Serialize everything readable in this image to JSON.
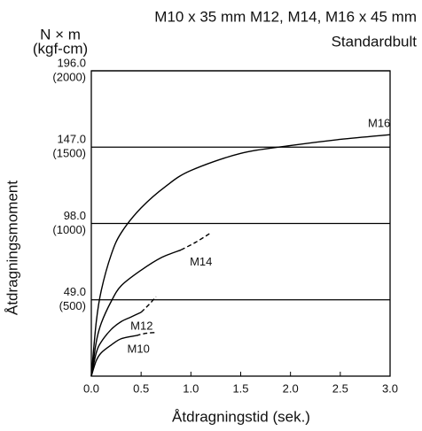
{
  "chart_data": {
    "type": "line",
    "title": "M10 x 35 mm M12, M14, M16 x 45 mm",
    "subtitle": "Standardbult",
    "y_unit": "N × m",
    "y_unit_secondary": "(kgf-cm)",
    "y_label": "Åtdragningsmoment",
    "x_label": "Åtdragningstid (sek.)",
    "xlim": [
      0,
      3
    ],
    "ylim": [
      0,
      196
    ],
    "xticks": [
      {
        "value": 0,
        "label": "0.0"
      },
      0.5,
      {
        "value": 1,
        "label": "1.0"
      },
      1.5,
      {
        "value": 2,
        "label": "2.0"
      },
      2.5,
      {
        "value": 3,
        "label": "3.0"
      }
    ],
    "yticks": [
      {
        "value": 49,
        "label": "49.0"
      },
      {
        "value": 98,
        "label": "98.0"
      },
      {
        "value": 147,
        "label": "147.0"
      },
      {
        "value": 196,
        "label": "196.0"
      }
    ],
    "ytick_sublabels": [
      "(500)",
      "(1000)",
      "(1500)",
      "(2000)"
    ],
    "grid": true,
    "series": [
      {
        "name": "M16",
        "color": "#000000",
        "style": "solid",
        "x": [
          0,
          0.05,
          0.1,
          0.2,
          0.3,
          0.5,
          0.75,
          1.0,
          1.5,
          2.0,
          2.5,
          3.0
        ],
        "values": [
          0,
          35,
          55,
          78,
          92,
          108,
          122,
          132,
          143,
          148,
          152,
          155
        ]
      },
      {
        "name": "M14",
        "color": "#000000",
        "style": "solid",
        "x": [
          0,
          0.05,
          0.1,
          0.2,
          0.3,
          0.5,
          0.7,
          0.9
        ],
        "values": [
          0,
          22,
          34,
          48,
          58,
          68,
          76,
          81
        ]
      },
      {
        "color": "#000000",
        "style": "dashed",
        "x": [
          0.9,
          1.05,
          1.2
        ],
        "values": [
          81,
          86,
          92
        ]
      },
      {
        "name": "M12",
        "color": "#000000",
        "style": "solid",
        "x": [
          0,
          0.05,
          0.1,
          0.2,
          0.3,
          0.4,
          0.5
        ],
        "values": [
          0,
          15,
          22,
          30,
          35,
          38,
          41
        ]
      },
      {
        "color": "#000000",
        "style": "dashed",
        "x": [
          0.5,
          0.58,
          0.65
        ],
        "values": [
          41,
          46,
          51
        ]
      },
      {
        "name": "M10",
        "color": "#000000",
        "style": "solid",
        "x": [
          0,
          0.05,
          0.1,
          0.2,
          0.3,
          0.45
        ],
        "values": [
          0,
          10,
          15,
          20,
          24,
          26
        ]
      },
      {
        "color": "#000000",
        "style": "dashed",
        "x": [
          0.45,
          0.55,
          0.65
        ],
        "values": [
          26,
          27.5,
          28
        ]
      }
    ]
  }
}
